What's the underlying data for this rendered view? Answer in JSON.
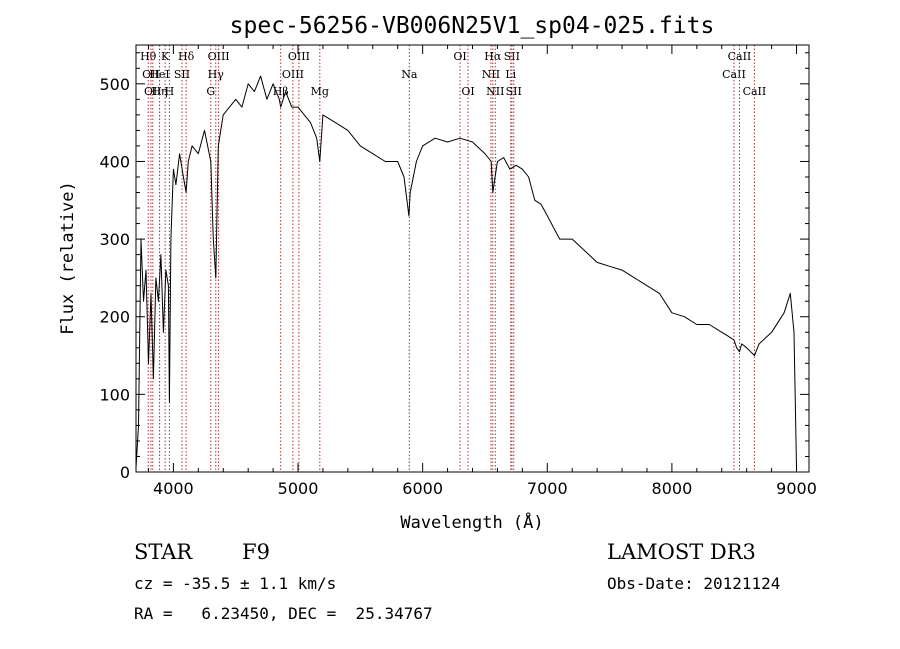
{
  "chart_data": {
    "type": "line",
    "title": "spec-56256-VB006N25V1_sp04-025.fits",
    "xlabel": "Wavelength (Å)",
    "ylabel": "Flux (relative)",
    "xlim": [
      3700,
      9100
    ],
    "ylim": [
      0,
      550
    ],
    "x_ticks": [
      4000,
      5000,
      6000,
      7000,
      8000,
      9000
    ],
    "y_ticks": [
      0,
      100,
      200,
      300,
      400,
      500
    ],
    "grid": false,
    "series": [
      {
        "name": "flux",
        "x": [
          3700,
          3720,
          3740,
          3760,
          3780,
          3800,
          3820,
          3840,
          3860,
          3880,
          3900,
          3920,
          3940,
          3960,
          3968,
          3980,
          4000,
          4020,
          4050,
          4080,
          4102,
          4120,
          4150,
          4200,
          4250,
          4300,
          4320,
          4340,
          4360,
          4400,
          4450,
          4500,
          4550,
          4600,
          4650,
          4700,
          4750,
          4800,
          4850,
          4861,
          4900,
          4950,
          5000,
          5050,
          5100,
          5150,
          5175,
          5200,
          5300,
          5400,
          5500,
          5600,
          5700,
          5800,
          5850,
          5890,
          5900,
          5950,
          6000,
          6100,
          6200,
          6300,
          6400,
          6500,
          6550,
          6563,
          6600,
          6650,
          6700,
          6750,
          6800,
          6850,
          6900,
          6950,
          7000,
          7100,
          7200,
          7300,
          7400,
          7500,
          7600,
          7700,
          7800,
          7900,
          8000,
          8100,
          8200,
          8300,
          8400,
          8450,
          8498,
          8520,
          8542,
          8560,
          8600,
          8662,
          8700,
          8800,
          8900,
          8950,
          8980,
          9000
        ],
        "values": [
          5,
          60,
          300,
          220,
          260,
          140,
          230,
          120,
          250,
          220,
          280,
          180,
          260,
          240,
          90,
          300,
          390,
          370,
          410,
          380,
          360,
          400,
          420,
          410,
          440,
          400,
          300,
          250,
          420,
          460,
          470,
          480,
          470,
          500,
          490,
          510,
          480,
          500,
          480,
          470,
          490,
          470,
          470,
          460,
          450,
          430,
          400,
          460,
          450,
          440,
          420,
          410,
          400,
          400,
          380,
          330,
          360,
          400,
          420,
          430,
          425,
          430,
          425,
          410,
          400,
          360,
          400,
          405,
          390,
          395,
          390,
          380,
          350,
          345,
          330,
          300,
          300,
          285,
          270,
          265,
          260,
          250,
          240,
          230,
          205,
          200,
          190,
          190,
          180,
          175,
          170,
          160,
          155,
          165,
          160,
          150,
          165,
          180,
          205,
          230,
          180,
          5
        ]
      }
    ],
    "line_markers": [
      {
        "x": 3798,
        "label": "Hθ",
        "row": 0
      },
      {
        "x": 3820,
        "label": "OII",
        "row": 1
      },
      {
        "x": 3835,
        "label": "OII",
        "row": 2
      },
      {
        "x": 3889,
        "label": "Hη",
        "row": 2
      },
      {
        "x": 3889,
        "label": "HeI",
        "row": 1
      },
      {
        "x": 3934,
        "label": "K",
        "row": 0
      },
      {
        "x": 3968,
        "label": "H",
        "row": 2
      },
      {
        "x": 4069,
        "label": "SII",
        "row": 1
      },
      {
        "x": 4102,
        "label": "Hδ",
        "row": 0
      },
      {
        "x": 4300,
        "label": "G",
        "row": 2
      },
      {
        "x": 4340,
        "label": "Hγ",
        "row": 1
      },
      {
        "x": 4363,
        "label": "OIII",
        "row": 0
      },
      {
        "x": 4861,
        "label": "Hβ",
        "row": 2
      },
      {
        "x": 4959,
        "label": "OIII",
        "row": 1
      },
      {
        "x": 5007,
        "label": "OIII",
        "row": 0
      },
      {
        "x": 5175,
        "label": "Mg",
        "row": 2
      },
      {
        "x": 5893,
        "label": "Na",
        "row": 1
      },
      {
        "x": 6300,
        "label": "OI",
        "row": 0
      },
      {
        "x": 6364,
        "label": "OI",
        "row": 2
      },
      {
        "x": 6548,
        "label": "NII",
        "row": 1
      },
      {
        "x": 6563,
        "label": "Hα",
        "row": 0
      },
      {
        "x": 6583,
        "label": "NII",
        "row": 2
      },
      {
        "x": 6707,
        "label": "Li",
        "row": 1
      },
      {
        "x": 6716,
        "label": "SII",
        "row": 0
      },
      {
        "x": 6731,
        "label": "SII",
        "row": 2
      },
      {
        "x": 8498,
        "label": "CaII",
        "row": 1
      },
      {
        "x": 8542,
        "label": "CaII",
        "row": 0
      },
      {
        "x": 8662,
        "label": "CaII",
        "row": 2
      }
    ]
  },
  "info": {
    "class_label": "STAR",
    "subclass_label": "F9",
    "survey_label": "LAMOST DR3",
    "cz_text": "cz = -35.5 ± 1.1 km/s",
    "obs_date_text": "Obs-Date: 20121124",
    "coords_text": "RA =   6.23450, DEC =  25.34767"
  },
  "colors": {
    "spectrum": "#000000",
    "marker": "#b03030",
    "background": "#ffffff"
  }
}
